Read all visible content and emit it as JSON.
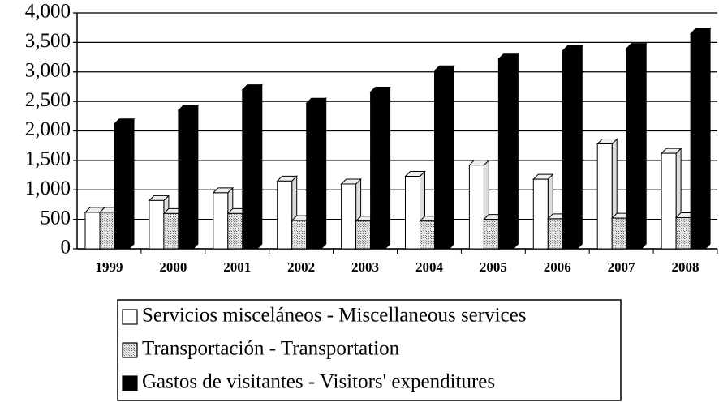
{
  "chart_data": {
    "type": "bar3d",
    "categories": [
      "1999",
      "2000",
      "2001",
      "2002",
      "2003",
      "2004",
      "2005",
      "2006",
      "2007",
      "2008"
    ],
    "series": [
      {
        "name": "Servicios misceláneos - Miscellaneous services",
        "color": "#ffffff",
        "values": [
          620,
          820,
          950,
          1150,
          1100,
          1230,
          1420,
          1180,
          1780,
          1620
        ]
      },
      {
        "name": "Transportación - Transportation",
        "color": "#c8c8c8",
        "values": [
          620,
          600,
          600,
          480,
          470,
          470,
          500,
          510,
          520,
          530
        ]
      },
      {
        "name": "Gastos de visitantes - Visitors' expenditures",
        "color": "#000000",
        "values": [
          2120,
          2350,
          2700,
          2470,
          2660,
          3020,
          3220,
          3360,
          3400,
          3650
        ]
      }
    ],
    "ylim": [
      0,
      4000
    ],
    "yticks": [
      0,
      500,
      {
        "value": 1000,
        "label": "1,000"
      },
      {
        "value": 1500,
        "label": "1,500"
      },
      {
        "value": 2000,
        "label": "2,000"
      },
      {
        "value": 2500,
        "label": "2,500"
      },
      {
        "value": 3000,
        "label": "3,000"
      },
      {
        "value": 3500,
        "label": "3,500"
      },
      {
        "value": 4000,
        "label": "4,000"
      }
    ],
    "grid": true,
    "legend": "bottom"
  }
}
